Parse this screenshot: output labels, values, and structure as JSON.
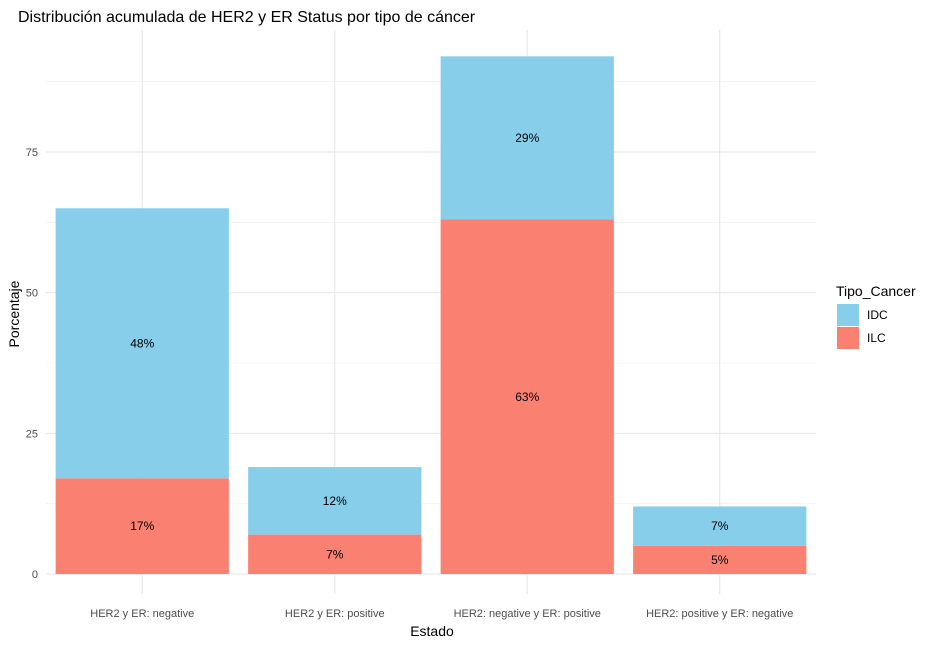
{
  "chart_data": {
    "type": "bar",
    "stacked": true,
    "title": "Distribución acumulada de HER2 y ER Status por tipo de cáncer",
    "xlabel": "Estado",
    "ylabel": "Porcentaje",
    "ylim": [
      0,
      95
    ],
    "yticks": [
      0,
      25,
      50,
      75
    ],
    "grid": true,
    "categories": [
      "HER2 y ER: negative",
      "HER2 y ER: positive",
      "HER2: negative y ER: positive",
      "HER2: positive y ER: negative"
    ],
    "series": [
      {
        "name": "ILC",
        "color": "#FA8072",
        "values": [
          17,
          7,
          63,
          5
        ],
        "labels": [
          "17%",
          "7%",
          "63%",
          "5%"
        ]
      },
      {
        "name": "IDC",
        "color": "#87CEEB",
        "values": [
          48,
          12,
          29,
          7
        ],
        "labels": [
          "48%",
          "12%",
          "29%",
          "7%"
        ]
      }
    ],
    "legend": {
      "title": "Tipo_Cancer",
      "position": "right",
      "items": [
        {
          "label": "IDC",
          "color": "#87CEEB"
        },
        {
          "label": "ILC",
          "color": "#FA8072"
        }
      ]
    }
  }
}
